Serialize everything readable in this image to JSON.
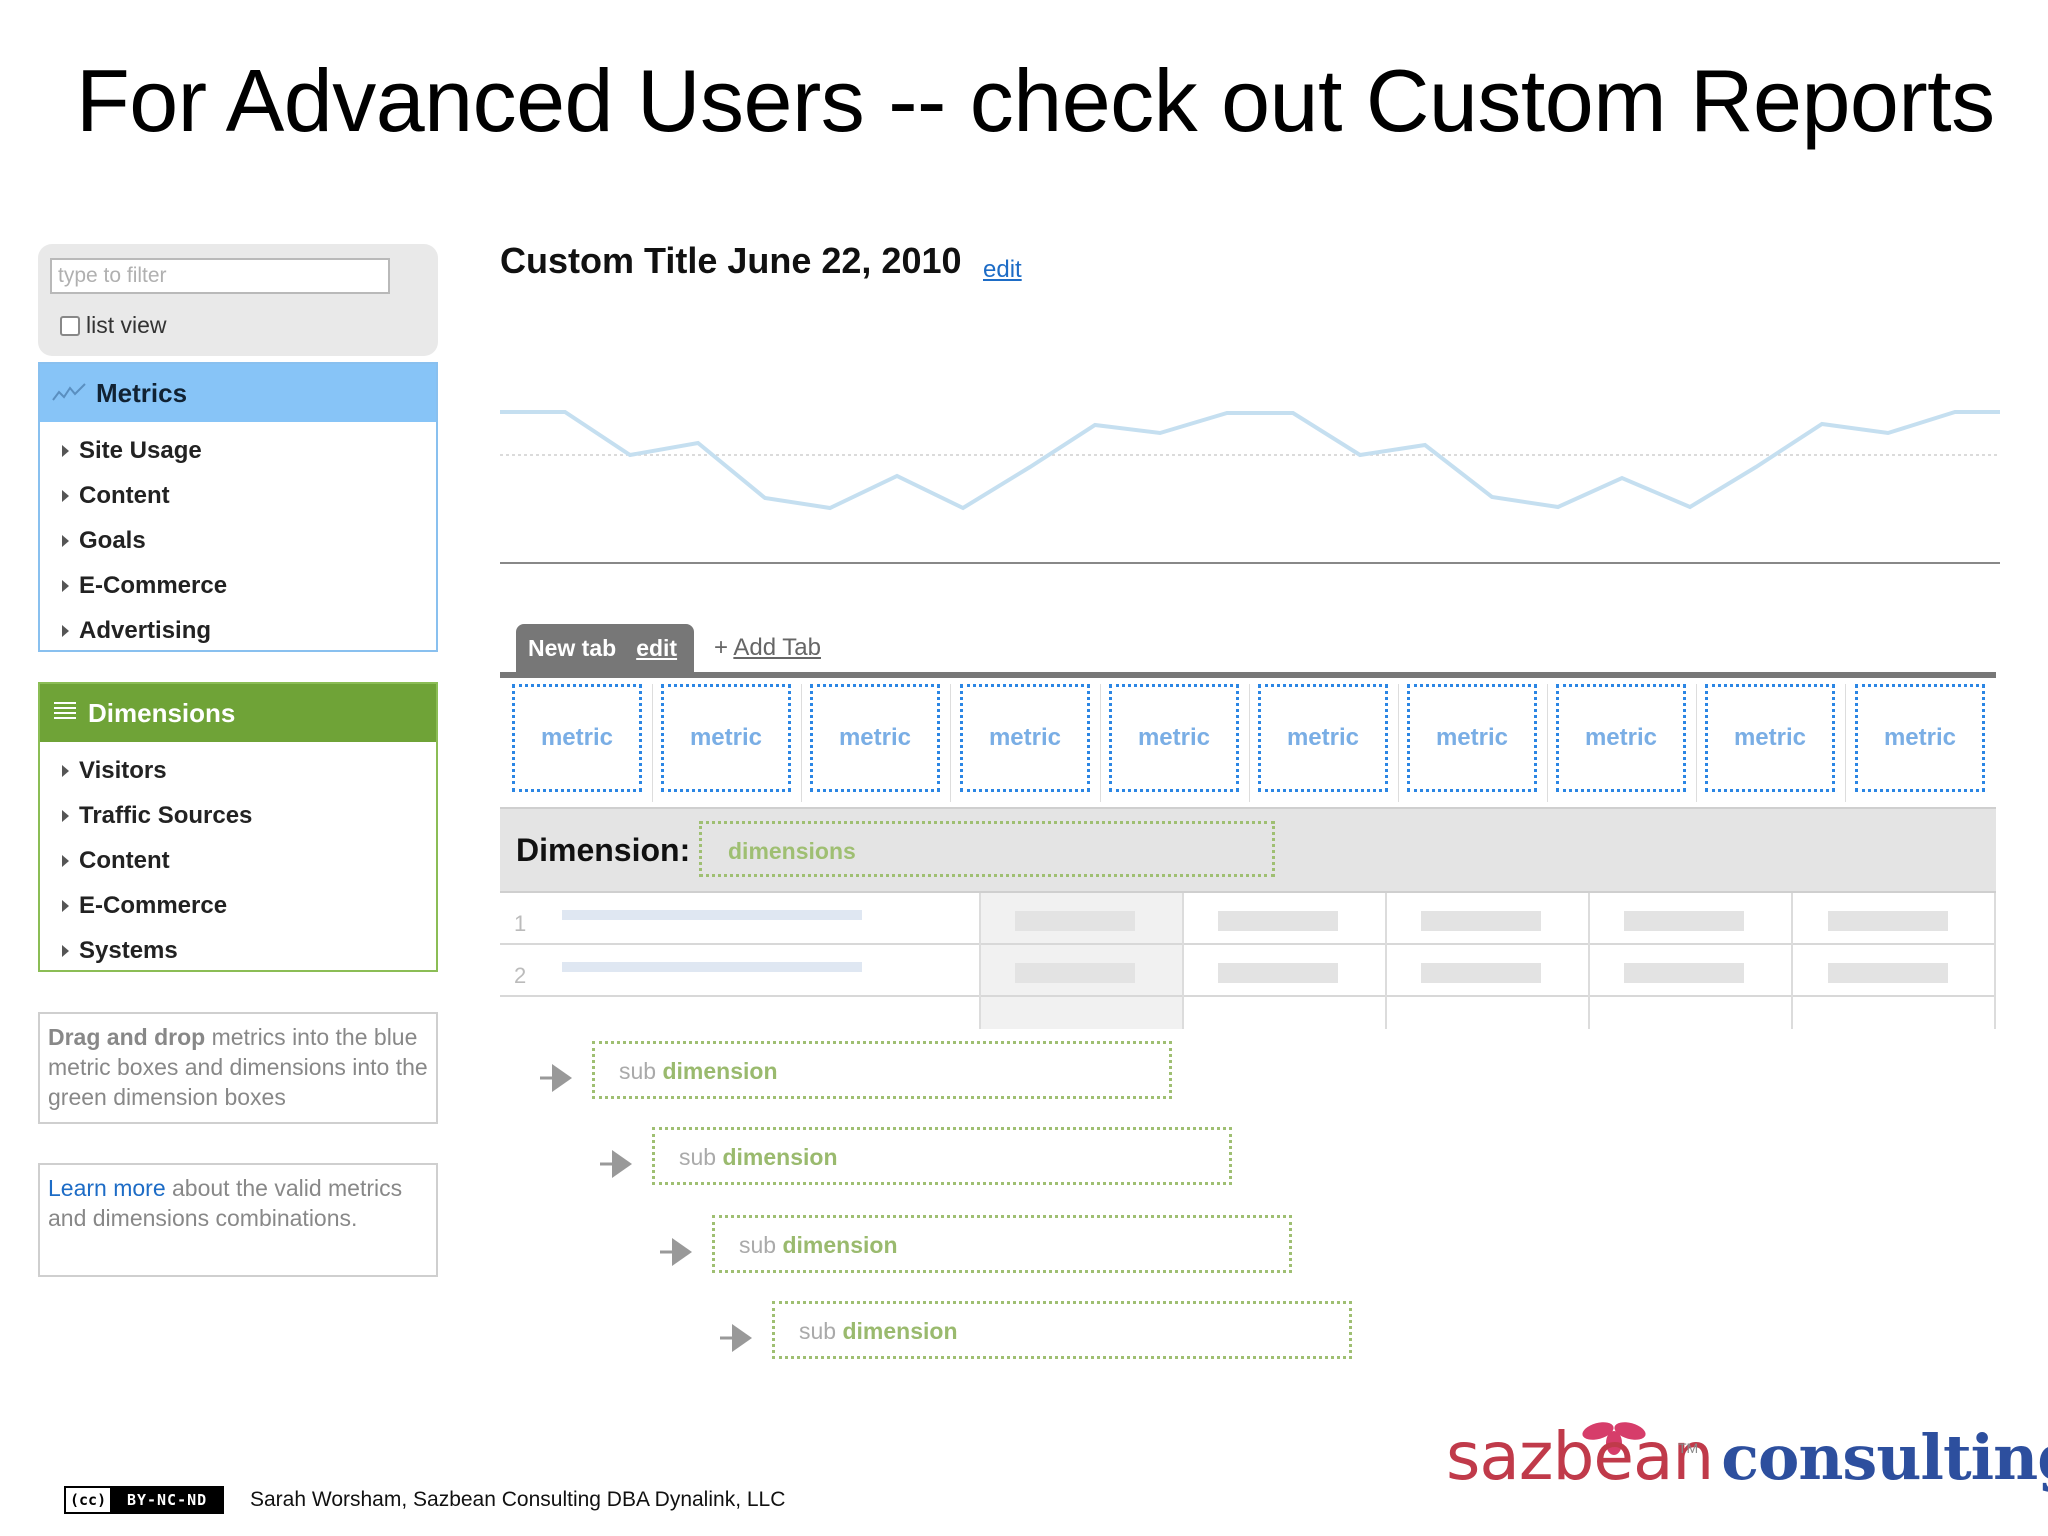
{
  "slide": {
    "title": "For Advanced Users -- check out Custom Reports",
    "footer_credit": "Sarah Worsham, Sazbean Consulting DBA Dynalink, LLC",
    "license_badge": {
      "cc": "cc",
      "text": "BY-NC-ND"
    },
    "logo": {
      "brand": "sazbean",
      "suffix": "consulting",
      "tm": "TM"
    }
  },
  "sidebar": {
    "filter_placeholder": "type to filter",
    "list_view_label": "list view",
    "metrics": {
      "title": "Metrics",
      "items": [
        "Site Usage",
        "Content",
        "Goals",
        "E-Commerce",
        "Advertising"
      ]
    },
    "dimensions": {
      "title": "Dimensions",
      "items": [
        "Visitors",
        "Traffic Sources",
        "Content",
        "E-Commerce",
        "Systems"
      ]
    },
    "help_drag": {
      "bold": "Drag and drop",
      "rest": "metrics into the blue metric boxes and dimensions into the green dimension boxes"
    },
    "help_learn": {
      "link": "Learn more",
      "rest": "about the valid metrics and dimensions combinations."
    }
  },
  "report": {
    "title": "Custom Title June 22, 2010",
    "edit_label": "edit",
    "tab_label": "New tab",
    "tab_edit_label": "edit",
    "add_tab_plus": "+",
    "add_tab_label": "Add Tab",
    "metric_labels": [
      "metric",
      "metric",
      "metric",
      "metric",
      "metric",
      "metric",
      "metric",
      "metric",
      "metric",
      "metric"
    ],
    "dimension_label": "Dimension:",
    "dimension_drop": "dimensions",
    "row_numbers": [
      "1",
      "2"
    ],
    "sub_dimensions": [
      {
        "light": "sub",
        "bold": "dimension"
      },
      {
        "light": "sub",
        "bold": "dimension"
      },
      {
        "light": "sub",
        "bold": "dimension"
      },
      {
        "light": "sub",
        "bold": "dimension"
      }
    ]
  },
  "colors": {
    "metrics_header": "#87c4f7",
    "dimensions_header": "#6fa337",
    "metric_border": "#2b86e4",
    "dimension_border": "#9fbf72",
    "link": "#1d6cc6",
    "logo_brand": "#c03a4a",
    "logo_suffix": "#2d4f9e"
  },
  "icons": [
    "chart-line-icon",
    "list-icon",
    "triangle-right-icon",
    "arrow-right-icon",
    "cc-icon",
    "flower-icon"
  ]
}
